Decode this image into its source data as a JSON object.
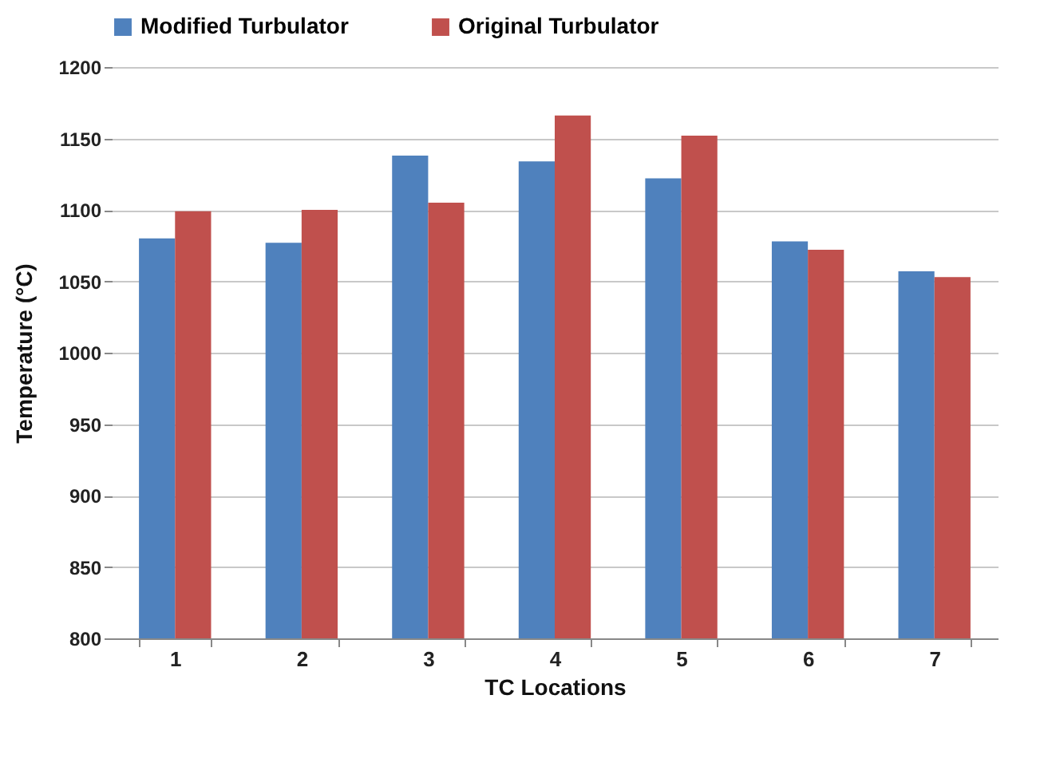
{
  "chart_data": {
    "type": "bar",
    "xlabel": "TC Locations",
    "ylabel": "Temperature (°C)",
    "categories": [
      "1",
      "2",
      "3",
      "4",
      "5",
      "6",
      "7"
    ],
    "series": [
      {
        "name": "Modified Turbulator",
        "color": "#4f81bd",
        "values": [
          1080,
          1077,
          1138,
          1134,
          1122,
          1078,
          1057
        ]
      },
      {
        "name": "Original Turbulator",
        "color": "#c0504d",
        "values": [
          1099,
          1100,
          1105,
          1166,
          1152,
          1072,
          1053
        ]
      }
    ],
    "ylim": [
      800,
      1200
    ],
    "yticks": [
      800,
      850,
      900,
      950,
      1000,
      1050,
      1100,
      1150,
      1200
    ],
    "grid": "y",
    "legend": "top"
  }
}
